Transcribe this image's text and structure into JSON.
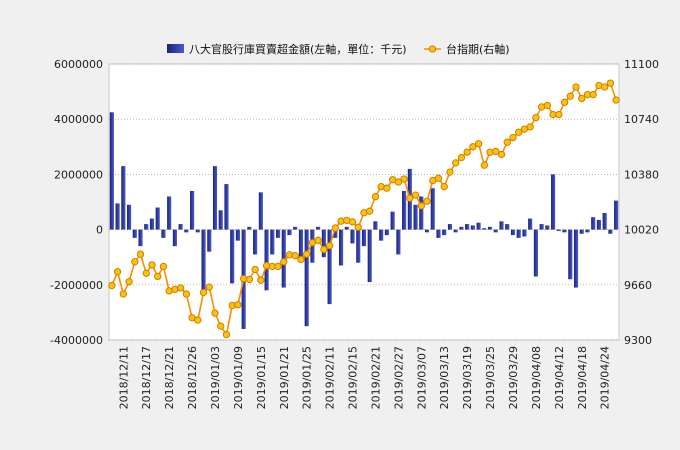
{
  "chart_data": {
    "type": "bar+line",
    "title": "",
    "legend": {
      "placement": "top-center",
      "items": [
        {
          "label": "八大官股行庫買賣超金額(左軸，單位：千元)",
          "kind": "bar"
        },
        {
          "label": "台指期(右軸)",
          "kind": "line"
        }
      ]
    },
    "left_axis": {
      "ylim": [
        -4000000,
        6000000
      ],
      "ticks": [
        "6000000",
        "4000000",
        "2000000",
        "0",
        "-2000000",
        "-4000000"
      ]
    },
    "right_axis": {
      "ylim": [
        9300,
        11100
      ],
      "ticks": [
        "11100",
        "10740",
        "10380",
        "10020",
        "9660",
        "9300"
      ]
    },
    "x_ticks": [
      {
        "i": 2,
        "label": "2018/12/11"
      },
      {
        "i": 6,
        "label": "2018/12/17"
      },
      {
        "i": 10,
        "label": "2018/12/21"
      },
      {
        "i": 14,
        "label": "2018/12/26"
      },
      {
        "i": 18,
        "label": "2019/01/03"
      },
      {
        "i": 22,
        "label": "2019/01/09"
      },
      {
        "i": 26,
        "label": "2019/01/15"
      },
      {
        "i": 30,
        "label": "2019/01/21"
      },
      {
        "i": 34,
        "label": "2019/01/25"
      },
      {
        "i": 38,
        "label": "2019/02/11"
      },
      {
        "i": 42,
        "label": "2019/02/15"
      },
      {
        "i": 46,
        "label": "2019/02/21"
      },
      {
        "i": 50,
        "label": "2019/02/27"
      },
      {
        "i": 54,
        "label": "2019/03/07"
      },
      {
        "i": 58,
        "label": "2019/03/13"
      },
      {
        "i": 62,
        "label": "2019/03/19"
      },
      {
        "i": 66,
        "label": "2019/03/25"
      },
      {
        "i": 70,
        "label": "2019/03/29"
      },
      {
        "i": 74,
        "label": "2019/04/08"
      },
      {
        "i": 78,
        "label": "2019/04/12"
      },
      {
        "i": 82,
        "label": "2019/04/18"
      },
      {
        "i": 86,
        "label": "2019/04/24"
      }
    ],
    "grid": "horizontal-dotted",
    "bar_values": [
      4250000,
      950000,
      2300000,
      900000,
      -300000,
      -600000,
      200000,
      400000,
      800000,
      -300000,
      1200000,
      -600000,
      200000,
      -100000,
      1400000,
      -100000,
      -2200000,
      -800000,
      2300000,
      700000,
      1650000,
      -1950000,
      -400000,
      -3600000,
      100000,
      -900000,
      1350000,
      -2200000,
      -900000,
      -300000,
      -2100000,
      -200000,
      100000,
      -1000000,
      -3500000,
      -1200000,
      100000,
      -1000000,
      -2700000,
      -300000,
      -1300000,
      100000,
      -500000,
      -1200000,
      -600000,
      -1900000,
      300000,
      -400000,
      -200000,
      650000,
      -900000,
      1400000,
      2200000,
      900000,
      1200000,
      -100000,
      1500000,
      -300000,
      -200000,
      200000,
      -100000,
      100000,
      200000,
      150000,
      250000,
      50000,
      100000,
      -100000,
      300000,
      200000,
      -200000,
      -300000,
      -250000,
      400000,
      -1700000,
      200000,
      150000,
      2000000,
      -50000,
      -100000,
      -1800000,
      -2100000,
      -150000,
      -100000,
      450000,
      350000,
      600000,
      -150000,
      1050000
    ],
    "line_values": [
      9655,
      9745,
      9600,
      9680,
      9810,
      9860,
      9735,
      9790,
      9715,
      9780,
      9620,
      9630,
      9640,
      9600,
      9445,
      9430,
      9610,
      9645,
      9475,
      9390,
      9335,
      9525,
      9530,
      9700,
      9695,
      9760,
      9690,
      9785,
      9780,
      9780,
      9810,
      9855,
      9850,
      9825,
      9860,
      9935,
      9950,
      9890,
      9915,
      10030,
      10075,
      10080,
      10070,
      10035,
      10130,
      10140,
      10235,
      10300,
      10290,
      10345,
      10330,
      10350,
      10225,
      10245,
      10175,
      10205,
      10340,
      10355,
      10300,
      10395,
      10455,
      10490,
      10525,
      10560,
      10580,
      10440,
      10525,
      10530,
      10510,
      10590,
      10620,
      10655,
      10675,
      10690,
      10750,
      10820,
      10830,
      10770,
      10770,
      10850,
      10890,
      10950,
      10875,
      10900,
      10900,
      10960,
      10950,
      10975,
      10865
    ],
    "colors": {
      "bar_dark": "#1a237e",
      "bar_light": "#4a5ac8",
      "line": "#ff8c00",
      "marker_fill": "#ffc107",
      "marker_stroke": "#c87800",
      "grid": "#999999",
      "plot_bg": "#ffffff",
      "page_bg": "#f0f0f0"
    }
  }
}
